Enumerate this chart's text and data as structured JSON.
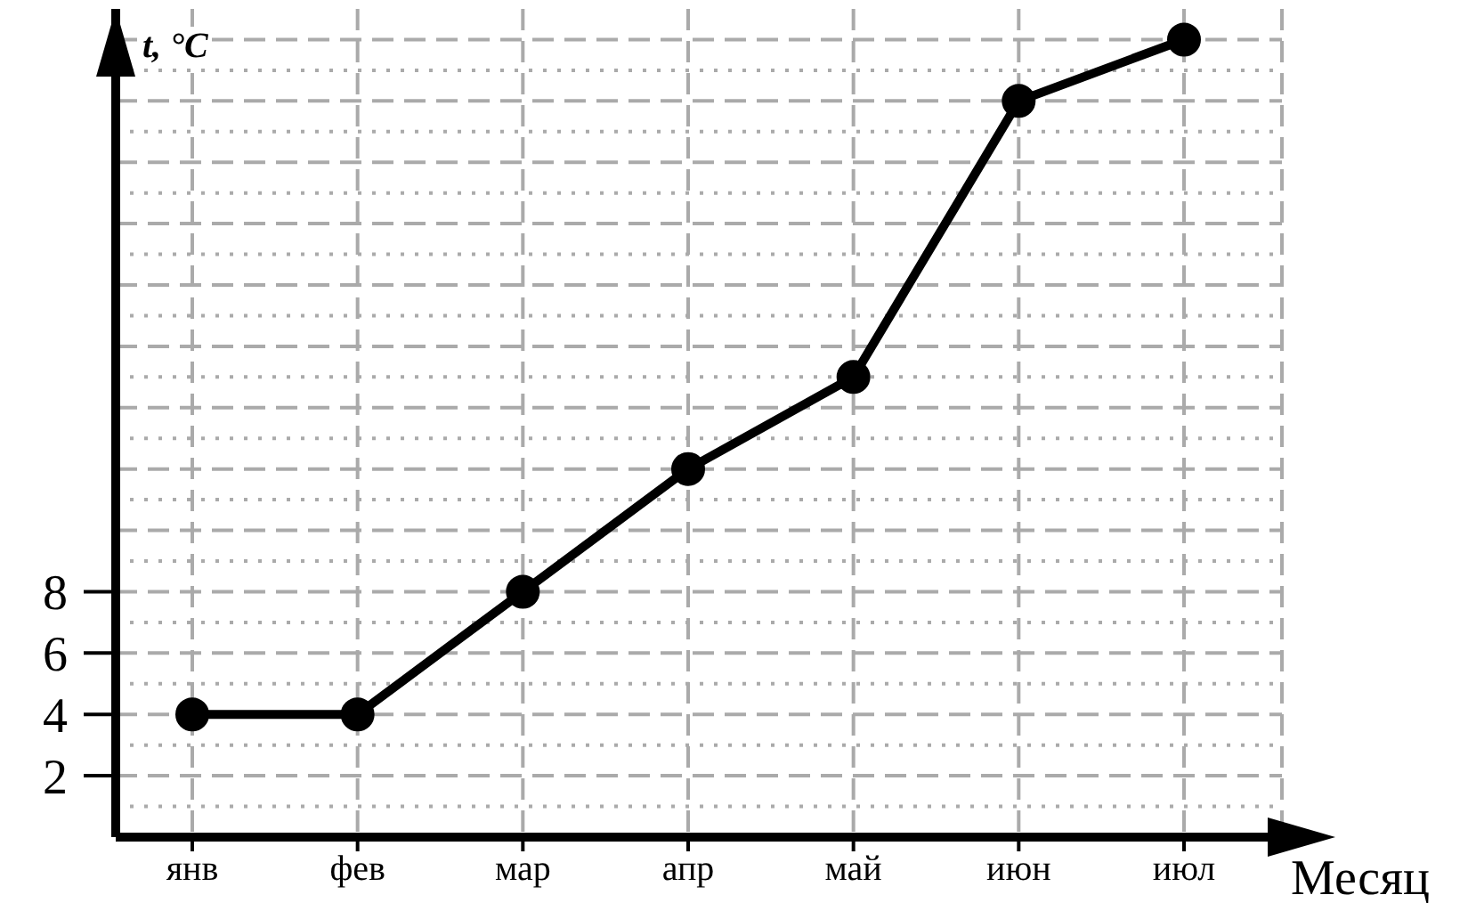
{
  "chart_data": {
    "type": "line",
    "xlabel": "Месяц",
    "ylabel": "t, °C",
    "categories": [
      "янв",
      "фев",
      "мар",
      "апр",
      "май",
      "июн",
      "июл"
    ],
    "series": [
      {
        "color": "#000000",
        "values": [
          4,
          4,
          8,
          12,
          15,
          24,
          26
        ]
      }
    ],
    "ylim": [
      0,
      27
    ],
    "yticks": [
      {
        "value": 1,
        "label": null
      },
      2,
      {
        "value": 3,
        "label": null
      },
      4,
      {
        "value": 5,
        "label": null
      },
      6,
      {
        "value": 7,
        "label": null
      },
      8,
      {
        "value": 9,
        "label": null
      },
      {
        "value": 10,
        "label": null
      },
      {
        "value": 11,
        "label": null
      },
      {
        "value": 12,
        "label": null
      },
      {
        "value": 13,
        "label": null
      },
      {
        "value": 14,
        "label": null
      },
      {
        "value": 15,
        "label": null
      },
      {
        "value": 16,
        "label": null
      },
      {
        "value": 17,
        "label": null
      },
      {
        "value": 18,
        "label": null
      },
      {
        "value": 19,
        "label": null
      },
      {
        "value": 20,
        "label": null
      },
      {
        "value": 21,
        "label": null
      },
      {
        "value": 22,
        "label": null
      },
      {
        "value": 23,
        "label": null
      },
      {
        "value": 24,
        "label": null
      },
      {
        "value": 25,
        "label": null
      },
      {
        "value": 26,
        "label": null
      }
    ],
    "grid": true,
    "marker": "circle",
    "line_style": "solid",
    "legend": false
  }
}
